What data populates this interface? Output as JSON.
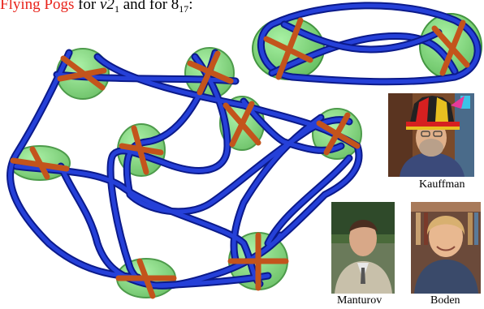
{
  "caption": {
    "accent": "Flying Pogs",
    "text1": " for ",
    "knot1_main": "v2",
    "knot1_sub": "1",
    "text2": " and for ",
    "knot2_main": "8",
    "knot2_sub": "17",
    "text3": ":"
  },
  "people": [
    {
      "name": "Kauffman"
    },
    {
      "name": "Manturov"
    },
    {
      "name": "Boden"
    }
  ],
  "colors": {
    "accent": "#e8231b",
    "tube": "#1a2fc0",
    "pog_fill": "#6fd06a",
    "pog_stroke": "#2f8a2c",
    "cross": "#c3541c"
  }
}
